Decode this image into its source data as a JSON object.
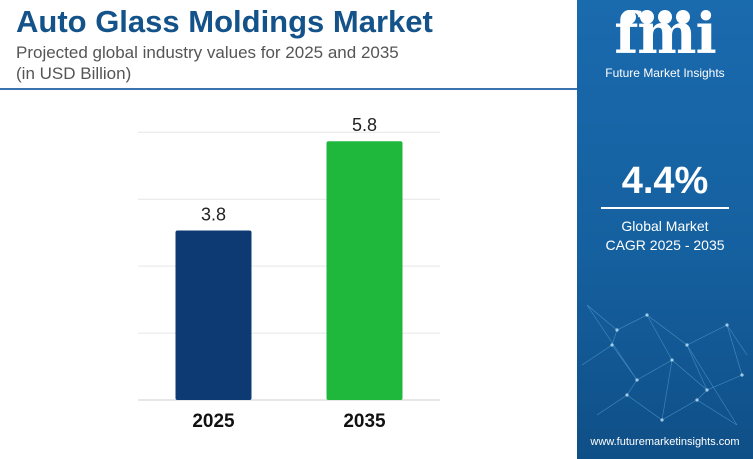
{
  "header": {
    "title": "Auto Glass Moldings Market",
    "subtitle_line1": "Projected global industry values for 2025 and 2035",
    "subtitle_line2": "(in USD Billion)"
  },
  "chart_data": {
    "type": "bar",
    "categories": [
      "2025",
      "2035"
    ],
    "values": [
      3.8,
      5.8
    ],
    "value_labels": [
      "3.8",
      "5.8"
    ],
    "bar_colors": [
      "#0d3a73",
      "#1fb83c"
    ],
    "ylim": [
      0,
      6.5
    ],
    "grid": true,
    "xlabel": "",
    "ylabel": ""
  },
  "sidebar": {
    "brand_mark": "fmi",
    "brand_name": "Future Market Insights",
    "cagr_value": "4.4%",
    "cagr_label_line1": "Global Market",
    "cagr_label_line2": "CAGR 2025 - 2035",
    "website": "www.futuremarketinsights.com",
    "background_color": "#15609f"
  }
}
